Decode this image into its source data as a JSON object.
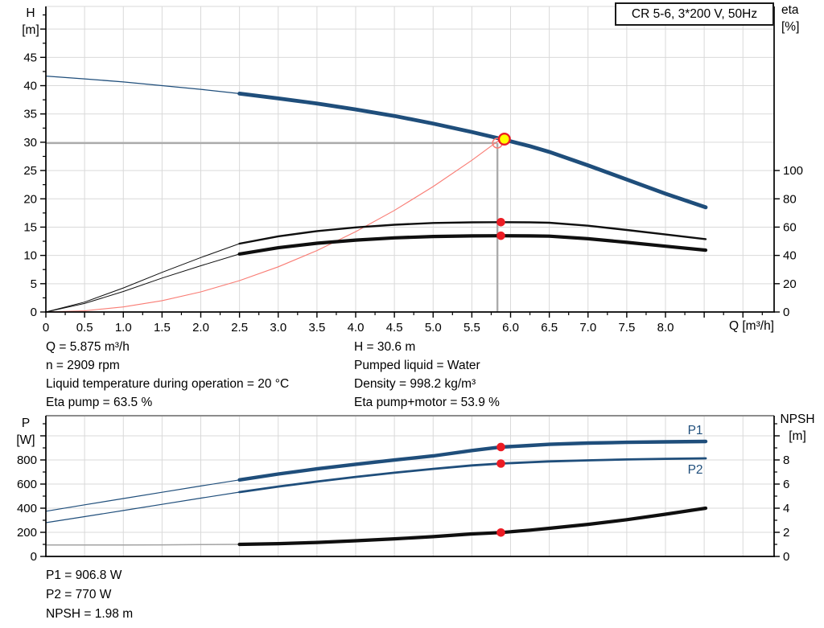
{
  "title_box": {
    "label": "CR 5-6, 3*200 V, 50Hz"
  },
  "colors": {
    "curve_blue": "#1f4e7b",
    "curve_black": "#0f0f0f",
    "system_curve_red": "#f97c74",
    "marker_red": "#ec1c24",
    "marker_yellow": "#ffff00",
    "crosshair_gray": "#ababab",
    "grid_gray": "#d9d9d9",
    "frame_gray": "#8c8c8c",
    "npsh_thin_gray": "#a3a3a3",
    "axis_black": "#000000"
  },
  "info_block": {
    "left": [
      "Q = 5.875 m³/h",
      "n = 2909 rpm",
      "Liquid temperature during operation = 20 °C",
      "Eta pump = 63.5 %"
    ],
    "right": [
      "H = 30.6 m",
      "Pumped liquid = Water",
      "Density = 998.2 kg/m³",
      "Eta pump+motor = 53.9 %"
    ]
  },
  "results_block": {
    "lines": [
      "P1 = 906.8 W",
      "P2 = 770 W",
      "NPSH = 1.98 m"
    ]
  },
  "chart_data": [
    {
      "type": "line",
      "title": "CR 5-6, 3*200 V, 50Hz",
      "xlabel": "Q [m³/h]",
      "x_axis": {
        "lim": [
          0,
          9.41
        ],
        "major_step": 0.5,
        "minor_step": 0.25,
        "labeled_max": 8,
        "show_labels": true
      },
      "left_axis": {
        "label": "H",
        "unit": "[m]",
        "lim": [
          0,
          54
        ],
        "major_step": 5,
        "minor_step": 2.5,
        "labeled_max": 45
      },
      "right_axis": {
        "label": "eta",
        "unit": "[%]",
        "left_units_per_right_unit": 0.25,
        "majors": [
          0,
          20,
          40,
          60,
          80,
          100
        ],
        "labeled_max": 100,
        "minor_step": 0
      },
      "grid": true,
      "series": [
        {
          "name": "system-curve",
          "legend": "",
          "axis": "left",
          "style": "system",
          "x": [
            0,
            0.5,
            1,
            1.5,
            2,
            2.5,
            3,
            3.5,
            4,
            4.5,
            5,
            5.5,
            5.875
          ],
          "y": [
            0,
            0.22,
            0.89,
            2.0,
            3.55,
            5.54,
            7.98,
            10.86,
            14.19,
            17.95,
            22.17,
            26.82,
            30.6
          ]
        },
        {
          "name": "eta-pump-curve",
          "legend": "",
          "axis": "right",
          "style": "eta_pump",
          "split": 2.5,
          "x": [
            0,
            0.5,
            1,
            1.5,
            2,
            2.5,
            3,
            3.5,
            4,
            4.5,
            5,
            5.5,
            5.875,
            6.25,
            6.5,
            7,
            7.5,
            8,
            8.52
          ],
          "y": [
            0,
            7,
            17,
            28,
            38.5,
            48.3,
            53.5,
            57.2,
            59.8,
            61.7,
            62.9,
            63.4,
            63.5,
            63.4,
            63.1,
            61.0,
            58.0,
            54.8,
            51.5
          ]
        },
        {
          "name": "eta-pump-motor-curve",
          "legend": "",
          "axis": "right",
          "style": "eta_motor",
          "split": 2.5,
          "x": [
            0,
            0.5,
            1,
            1.5,
            2,
            2.5,
            3,
            3.5,
            4,
            4.5,
            5,
            5.5,
            5.875,
            6.25,
            6.5,
            7,
            7.5,
            8,
            8.52
          ],
          "y": [
            0,
            6,
            14.5,
            24,
            32.7,
            41.0,
            45.4,
            48.6,
            50.8,
            52.4,
            53.4,
            53.8,
            53.9,
            53.8,
            53.6,
            51.8,
            49.2,
            46.5,
            43.7
          ]
        },
        {
          "name": "qh-curve",
          "legend": "",
          "axis": "left",
          "style": "qh",
          "split": 2.5,
          "x": [
            0,
            0.5,
            1,
            1.5,
            2,
            2.5,
            3,
            3.5,
            4,
            4.5,
            5,
            5.5,
            5.875,
            6.25,
            6.5,
            7,
            7.5,
            8,
            8.52
          ],
          "y": [
            41.7,
            41.2,
            40.65,
            40.0,
            39.35,
            38.6,
            37.75,
            36.85,
            35.8,
            34.65,
            33.3,
            31.8,
            30.6,
            29.3,
            28.3,
            25.9,
            23.4,
            20.9,
            18.5
          ]
        }
      ],
      "duty_point": {
        "q": 5.875,
        "h": 30.6
      },
      "duty_eta_points": [
        {
          "q": 5.875,
          "value": 63.5
        },
        {
          "q": 5.875,
          "value": 53.9
        }
      ]
    },
    {
      "type": "line",
      "title": "",
      "xlabel": "",
      "x_axis": {
        "lim": [
          0,
          9.41
        ],
        "major_step": 0.5,
        "minor_step": 0,
        "labeled_max": -1,
        "show_labels": false
      },
      "left_axis": {
        "label": "P",
        "unit": "[W]",
        "lim": [
          0,
          1166
        ],
        "major_step": 200,
        "minor_step": 100,
        "labeled_max": 800
      },
      "right_axis": {
        "label": "NPSH",
        "unit": "[m]",
        "left_units_per_right_unit": 100,
        "majors": [
          0,
          2,
          4,
          6,
          8,
          10
        ],
        "labeled_max": 8,
        "minor_step": 1
      },
      "grid": true,
      "series": [
        {
          "name": "p1-curve",
          "legend": "P1",
          "axis": "left",
          "style": "p1",
          "split": 2.5,
          "x": [
            0,
            0.5,
            1,
            1.5,
            2,
            2.5,
            3,
            3.5,
            4,
            4.5,
            5,
            5.5,
            5.875,
            6.25,
            6.5,
            7,
            7.5,
            8,
            8.52
          ],
          "y": [
            375,
            428,
            480,
            532,
            584,
            635,
            683,
            726,
            764,
            799,
            833,
            878,
            906.8,
            920,
            929,
            940,
            946,
            950,
            953
          ]
        },
        {
          "name": "p2-curve",
          "legend": "P2",
          "axis": "left",
          "style": "p2",
          "split": 2.5,
          "x": [
            0,
            0.5,
            1,
            1.5,
            2,
            2.5,
            3,
            3.5,
            4,
            4.5,
            5,
            5.5,
            5.875,
            6.25,
            6.5,
            7,
            7.5,
            8,
            8.52
          ],
          "y": [
            280,
            330,
            381,
            432,
            483,
            533,
            579,
            621,
            659,
            694,
            726,
            755,
            770,
            781,
            788,
            797,
            804,
            809,
            813
          ]
        },
        {
          "name": "npsh-curve",
          "legend": "",
          "axis": "right",
          "style": "npsh",
          "split": 2.5,
          "x": [
            0,
            0.5,
            1,
            1.5,
            2,
            2.5,
            3,
            3.5,
            4,
            4.5,
            5,
            5.5,
            5.875,
            6.25,
            6.5,
            7,
            7.5,
            8,
            8.52
          ],
          "y": [
            0.95,
            0.95,
            0.95,
            0.96,
            0.98,
            1.0,
            1.06,
            1.16,
            1.3,
            1.46,
            1.64,
            1.87,
            1.98,
            2.18,
            2.33,
            2.66,
            3.05,
            3.5,
            4.0
          ]
        }
      ],
      "duty_markers": [
        {
          "series": "p1-curve",
          "q": 5.875,
          "axis": "left",
          "value": 906.8
        },
        {
          "series": "p2-curve",
          "q": 5.875,
          "axis": "left",
          "value": 770
        },
        {
          "series": "npsh-curve",
          "q": 5.875,
          "axis": "right",
          "value": 1.98
        }
      ]
    }
  ]
}
